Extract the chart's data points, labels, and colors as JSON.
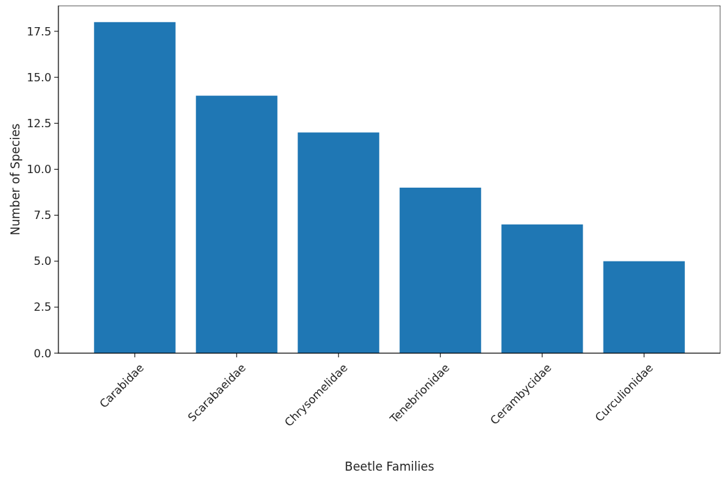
{
  "chart_data": {
    "type": "bar",
    "xlabel": "Beetle Families",
    "ylabel": "Number of Species",
    "categories": [
      "Carabidae",
      "Scarabaeidae",
      "Chrysomelidae",
      "Tenebrionidae",
      "Cerambycidae",
      "Curculionidae"
    ],
    "values": [
      18,
      14,
      12,
      9,
      7,
      5
    ],
    "color": "#1f77b4",
    "ylim": [
      0,
      18.9
    ],
    "yticks": [
      {
        "value": 0,
        "label": "0.0"
      },
      {
        "value": 2.5,
        "label": "2.5"
      },
      {
        "value": 5,
        "label": "5.0"
      },
      {
        "value": 7.5,
        "label": "7.5"
      },
      {
        "value": 10,
        "label": "10.0"
      },
      {
        "value": 12.5,
        "label": "12.5"
      },
      {
        "value": 15,
        "label": "15.0"
      },
      {
        "value": 17.5,
        "label": "17.5"
      }
    ],
    "grid": false
  }
}
